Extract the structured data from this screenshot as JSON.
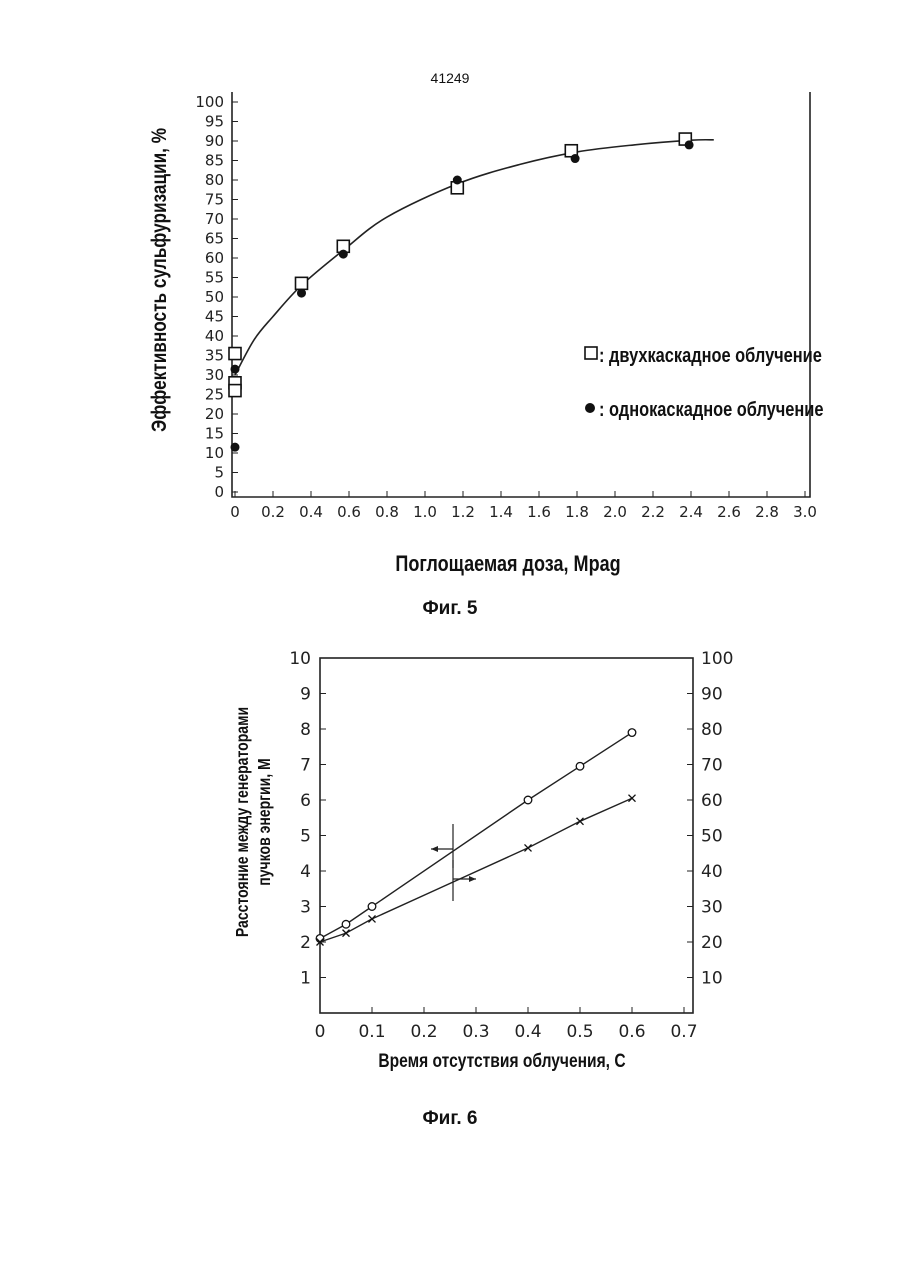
{
  "page": {
    "number": "41249"
  },
  "figures": {
    "fig5_caption": "Фиг. 5",
    "fig6_caption": "Фиг. 6"
  },
  "chart_data": [
    {
      "type": "scatter",
      "title": "",
      "xlabel": "Поглощаемая доза, Mpag",
      "ylabel": "Эффективность сульфуризации, %",
      "xlim": [
        0,
        3.0
      ],
      "ylim": [
        0,
        100
      ],
      "x_ticks": [
        "0",
        "0.2",
        "0.4",
        "0.6",
        "0.8",
        "1.0",
        "1.2",
        "1.4",
        "1.6",
        "1.8",
        "2.0",
        "2.2",
        "2.4",
        "2.6",
        "2.8",
        "3.0"
      ],
      "y_ticks": [
        "0",
        "5",
        "10",
        "15",
        "20",
        "25",
        "30",
        "35",
        "40",
        "45",
        "50",
        "55",
        "60",
        "65",
        "70",
        "75",
        "80",
        "85",
        "90",
        "95",
        "100"
      ],
      "grid": false,
      "legend_position": "right",
      "series": [
        {
          "name": "двухкаскадное облучение",
          "marker": "square-open",
          "x": [
            0,
            0,
            0,
            0.35,
            0.57,
            1.17,
            1.77,
            2.37
          ],
          "y": [
            35.5,
            28,
            26,
            53.5,
            63,
            78,
            87.5,
            90.5
          ]
        },
        {
          "name": "однокаскадное облучение",
          "marker": "circle-filled",
          "x": [
            0,
            0,
            0.35,
            0.57,
            1.17,
            1.79,
            2.39
          ],
          "y": [
            31.5,
            11.5,
            51,
            61,
            80,
            85.5,
            89
          ]
        },
        {
          "name": "",
          "marker": "none",
          "line": "smooth",
          "x": [
            0,
            0.1,
            0.2,
            0.35,
            0.57,
            0.8,
            1.17,
            1.5,
            1.8,
            2.1,
            2.4,
            2.52
          ],
          "y": [
            30,
            39,
            45,
            53,
            62,
            70.5,
            79,
            84,
            87.2,
            89,
            90.2,
            90.3
          ]
        }
      ],
      "legend": [
        {
          "symbol": "□",
          "text": ": двухкаскадное облучение"
        },
        {
          "symbol": "●",
          "text": ": однокаскадное облучение"
        }
      ]
    },
    {
      "type": "line",
      "title": "",
      "xlabel": "Время отсутствия облучения, С",
      "ylabel_lines": [
        "Расстояние между генераторами",
        "пучков энергии, М"
      ],
      "xlim": [
        0,
        0.7
      ],
      "ylim": [
        0,
        10
      ],
      "y2lim": [
        0,
        100
      ],
      "x_ticks": [
        "0",
        "0.1",
        "0.2",
        "0.3",
        "0.4",
        "0.5",
        "0.6",
        "0.7"
      ],
      "y_ticks": [
        "1",
        "2",
        "3",
        "4",
        "5",
        "6",
        "7",
        "8",
        "9",
        "10"
      ],
      "y2_ticks": [
        "10",
        "20",
        "30",
        "40",
        "50",
        "60",
        "70",
        "80",
        "90",
        "100"
      ],
      "grid": false,
      "series": [
        {
          "name": "",
          "marker": "circle-open",
          "axis": "left",
          "x": [
            0,
            0.05,
            0.1,
            0.4,
            0.5,
            0.6
          ],
          "y": [
            2.1,
            2.5,
            3.0,
            6.0,
            6.95,
            7.9
          ]
        },
        {
          "name": "",
          "marker": "cross",
          "axis": "right",
          "x": [
            0,
            0.05,
            0.1,
            0.4,
            0.5,
            0.6
          ],
          "y": [
            20,
            22.5,
            26.5,
            46.5,
            54,
            60.5
          ]
        }
      ]
    }
  ]
}
